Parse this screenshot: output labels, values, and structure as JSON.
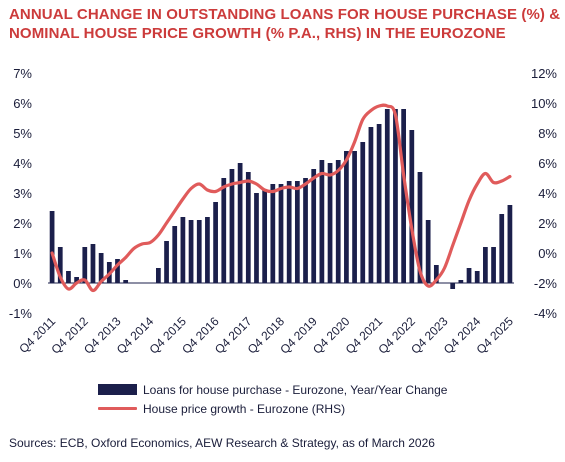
{
  "title": {
    "line1": "ANNUAL CHANGE IN OUTSTANDING LOANS FOR HOUSE PURCHASE (%) &",
    "line2": "NOMINAL HOUSE PRICE GROWTH (% P.A., RHS) IN THE EUROZONE"
  },
  "source": "Sources: ECB, Oxford Economics, AEW Research & Strategy, as of March 2026",
  "colors": {
    "title": "#cc3b3b",
    "bars": "#1b1f4b",
    "line": "#e05b5b",
    "text": "#1a1d3a"
  },
  "chart_data": {
    "type": "bar+line",
    "x_tick_labels": [
      "Q4 2011",
      "Q4 2012",
      "Q4 2013",
      "Q4 2014",
      "Q4 2015",
      "Q4 2016",
      "Q4 2017",
      "Q4 2018",
      "Q4 2019",
      "Q4 2020",
      "Q4 2021",
      "Q4 2022",
      "Q4 2023",
      "Q4 2024",
      "Q4 2025"
    ],
    "y_left": {
      "range": [
        -1,
        7
      ],
      "ticks": [
        "-1%",
        "0%",
        "1%",
        "2%",
        "3%",
        "4%",
        "5%",
        "6%",
        "7%"
      ]
    },
    "y_right": {
      "range": [
        -4,
        12
      ],
      "ticks": [
        "-4%",
        "-2%",
        "0%",
        "2%",
        "4%",
        "6%",
        "8%",
        "10%",
        "12%"
      ]
    },
    "grid": false,
    "legend_position": "bottom",
    "legend": {
      "bars": "Loans for house purchase - Eurozone, Year/Year Change",
      "line": "House price growth - Eurozone (RHS)"
    },
    "series": [
      {
        "name": "Loans for house purchase - Eurozone, Year/Year Change",
        "type": "bar",
        "axis": "left",
        "values": [
          2.4,
          1.2,
          0.4,
          0.2,
          1.2,
          1.3,
          1.0,
          0.7,
          0.8,
          0.1,
          0.0,
          0.0,
          0.0,
          0.5,
          1.4,
          1.9,
          2.2,
          2.1,
          2.1,
          2.2,
          2.7,
          3.5,
          3.8,
          4.0,
          3.7,
          3.0,
          3.1,
          3.3,
          3.3,
          3.4,
          3.4,
          3.5,
          3.8,
          4.1,
          4.0,
          4.1,
          4.4,
          4.4,
          4.7,
          5.2,
          5.3,
          5.8,
          5.8,
          5.8,
          5.1,
          3.7,
          2.1,
          0.6,
          0.0,
          -0.2,
          0.1,
          0.5,
          0.4,
          1.2,
          1.2,
          2.3,
          2.6
        ]
      },
      {
        "name": "House price growth - Eurozone (RHS)",
        "type": "line",
        "axis": "right",
        "values": [
          0.0,
          -1.6,
          -2.4,
          -2.0,
          -1.8,
          -2.5,
          -1.9,
          -1.4,
          -0.8,
          -0.3,
          0.3,
          0.6,
          0.7,
          1.2,
          2.0,
          2.8,
          3.6,
          4.3,
          4.6,
          4.2,
          4.1,
          4.4,
          4.6,
          4.7,
          4.8,
          4.6,
          4.2,
          4.1,
          4.3,
          4.4,
          4.3,
          4.6,
          5.0,
          5.3,
          5.2,
          5.5,
          6.2,
          7.4,
          8.9,
          9.5,
          9.8,
          9.8,
          9.2,
          5.2,
          1.6,
          -1.2,
          -2.2,
          -1.8,
          -1.0,
          0.5,
          2.0,
          3.5,
          4.6,
          5.3,
          4.7,
          4.8,
          5.1
        ]
      }
    ]
  }
}
